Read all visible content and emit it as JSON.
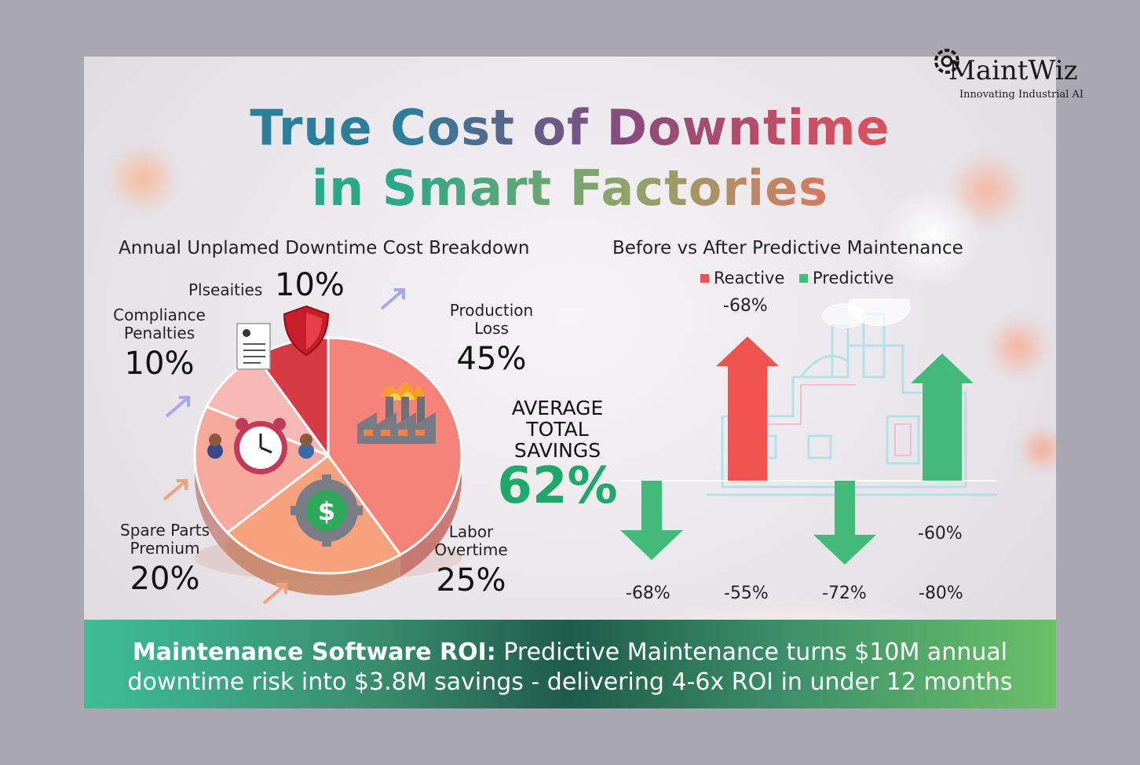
{
  "brand": {
    "name": "MaintWiz",
    "tagline": "Innovating Industrial AI"
  },
  "title": {
    "line1": "True Cost of Downtime",
    "line2": "in Smart Factories"
  },
  "banner": {
    "lead": "Maintenance Software ROI:",
    "rest1": " Predictive Maintenance turns $10M annual",
    "line2": "downtime risk into $3.8M savings - delivering 4-6x ROI in under 12 months"
  },
  "savings": {
    "label1": "AVERAGE",
    "label2": "TOTAL",
    "label3": "SAVINGS",
    "value": "62%"
  },
  "chart_data": [
    {
      "type": "pie",
      "title": "Annual Unplamed Downtime Cost Breakdown",
      "slices": [
        {
          "label": "Production Loss",
          "value": 45,
          "display": "45%",
          "color": "#f5837a"
        },
        {
          "label": "Labor Overtime",
          "value": 25,
          "display": "25%",
          "color": "#f8a27e"
        },
        {
          "label": "Spare Parts Premium",
          "value": 20,
          "display": "20%",
          "color": "#f7a99e"
        },
        {
          "label": "Compliance Penalties",
          "value": 10,
          "display": "10%",
          "color": "#f6b9b6"
        },
        {
          "label": "Plseaities",
          "value": 10,
          "display": "10%",
          "color": "#d63a45"
        }
      ],
      "text": {
        "production_l1": "Production",
        "production_l2": "Loss",
        "labor_l1": "Labor",
        "labor_l2": "Overtime",
        "spare_l1": "Spare Parts",
        "spare_l2": "Premium",
        "compliance_l1": "Compliance",
        "compliance_l2": "Penalties",
        "penalties": "Plseaities"
      }
    },
    {
      "type": "bar",
      "title": "Before vs After Predictive Maintenance",
      "legend": [
        "Reactive",
        "Predictive"
      ],
      "colors": {
        "Reactive": "#ef5350",
        "Predictive": "#43b97a"
      },
      "arrows": [
        {
          "series": "Predictive",
          "direction": "down",
          "value": -68,
          "label": "-68%"
        },
        {
          "series": "Reactive",
          "direction": "up",
          "value": -68,
          "label": "-68%"
        },
        {
          "series": "Predictive",
          "direction": "down",
          "value": -72,
          "label": "-72%"
        },
        {
          "series": "Predictive",
          "direction": "up",
          "value": -60,
          "label": "-60%"
        }
      ],
      "bottom_labels": [
        "-68%",
        "-55%",
        "-72%",
        "-80%"
      ]
    }
  ]
}
